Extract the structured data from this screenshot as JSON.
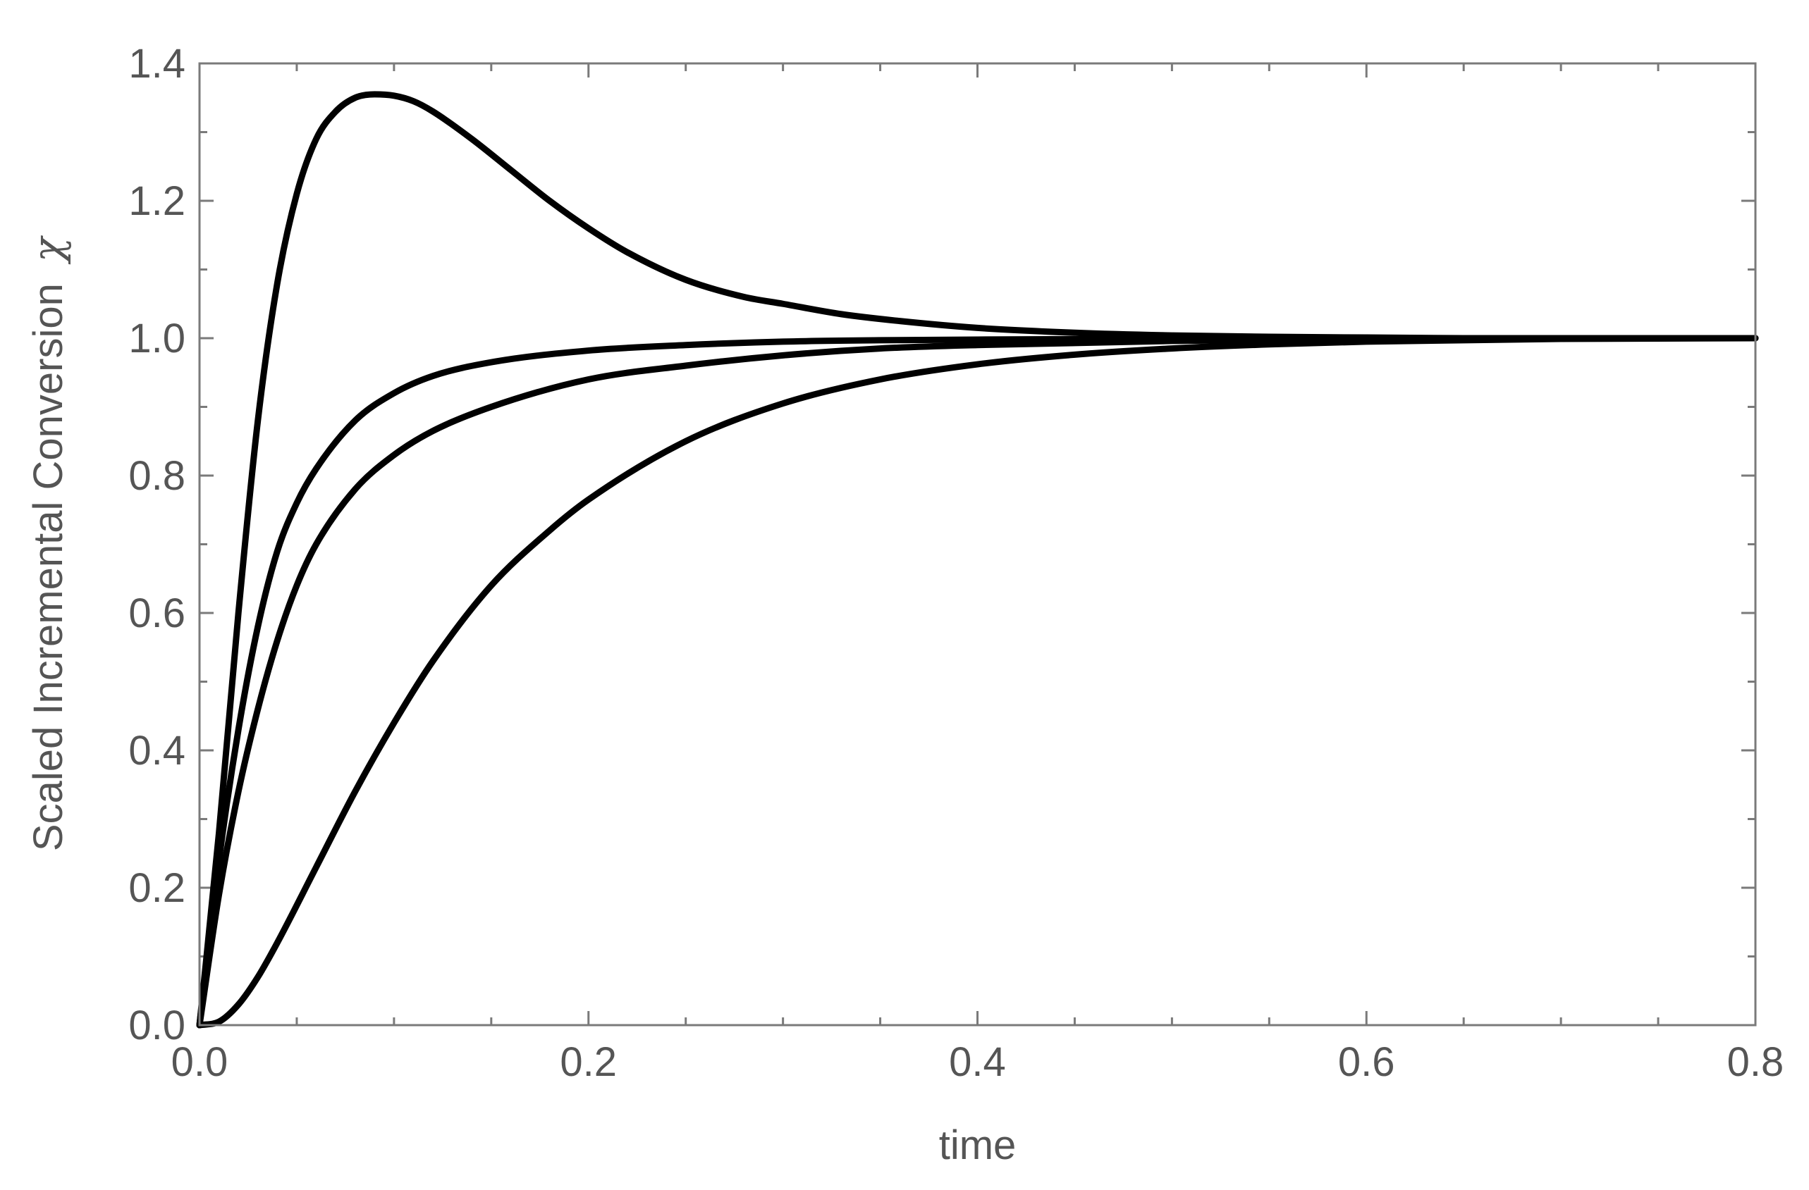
{
  "chart_data": {
    "type": "line",
    "title": "",
    "xlabel": "time",
    "ylabel": "Scaled Incremental Conversion",
    "ylabel_symbol": "χ",
    "xlim": [
      0,
      0.8
    ],
    "ylim": [
      0,
      1.4
    ],
    "x_ticks": [
      "0.0",
      "0.2",
      "0.4",
      "0.6",
      "0.8"
    ],
    "y_ticks": [
      "0.0",
      "0.2",
      "0.4",
      "0.6",
      "0.8",
      "1.0",
      "1.2",
      "1.4"
    ],
    "x_tick_values": [
      0,
      0.2,
      0.4,
      0.6,
      0.8
    ],
    "y_tick_values": [
      0,
      0.2,
      0.4,
      0.6,
      0.8,
      1.0,
      1.2,
      1.4
    ],
    "x_minor_step": 0.05,
    "y_minor_step": 0.1,
    "grid": false,
    "legend": "none",
    "line_color": "#000000",
    "series": [
      {
        "x": [
          0,
          0.01,
          0.02,
          0.03,
          0.04,
          0.05,
          0.06,
          0.07,
          0.08,
          0.09,
          0.1,
          0.11,
          0.12,
          0.14,
          0.16,
          0.18,
          0.2,
          0.22,
          0.25,
          0.28,
          0.3,
          0.33,
          0.36,
          0.4,
          0.45,
          0.5,
          0.55,
          0.6,
          0.65,
          0.7,
          0.75,
          0.8
        ],
        "y": [
          0,
          0.28,
          0.6,
          0.88,
          1.08,
          1.21,
          1.29,
          1.33,
          1.35,
          1.355,
          1.353,
          1.345,
          1.33,
          1.29,
          1.245,
          1.2,
          1.16,
          1.125,
          1.085,
          1.06,
          1.05,
          1.035,
          1.025,
          1.015,
          1.008,
          1.004,
          1.002,
          1.001,
          1.0,
          1.0,
          1.0,
          1.0
        ]
      },
      {
        "x": [
          0,
          0.01,
          0.02,
          0.03,
          0.04,
          0.05,
          0.06,
          0.08,
          0.1,
          0.12,
          0.15,
          0.2,
          0.25,
          0.3,
          0.35,
          0.4,
          0.5,
          0.6,
          0.7,
          0.8
        ],
        "y": [
          0,
          0.24,
          0.43,
          0.58,
          0.69,
          0.76,
          0.81,
          0.88,
          0.92,
          0.945,
          0.965,
          0.982,
          0.99,
          0.995,
          0.997,
          0.998,
          0.999,
          1.0,
          1.0,
          1.0
        ]
      },
      {
        "x": [
          0,
          0.01,
          0.02,
          0.03,
          0.04,
          0.05,
          0.06,
          0.08,
          0.1,
          0.12,
          0.15,
          0.2,
          0.25,
          0.3,
          0.35,
          0.4,
          0.5,
          0.6,
          0.7,
          0.8
        ],
        "y": [
          0,
          0.19,
          0.34,
          0.46,
          0.56,
          0.64,
          0.7,
          0.78,
          0.83,
          0.865,
          0.9,
          0.94,
          0.96,
          0.975,
          0.985,
          0.99,
          0.996,
          0.999,
          1.0,
          1.0
        ]
      },
      {
        "x": [
          0,
          0.01,
          0.02,
          0.03,
          0.04,
          0.06,
          0.08,
          0.1,
          0.12,
          0.15,
          0.18,
          0.2,
          0.25,
          0.3,
          0.35,
          0.4,
          0.45,
          0.5,
          0.55,
          0.6,
          0.7,
          0.8
        ],
        "y": [
          0,
          0.005,
          0.03,
          0.07,
          0.12,
          0.23,
          0.34,
          0.44,
          0.53,
          0.64,
          0.72,
          0.765,
          0.85,
          0.905,
          0.94,
          0.962,
          0.976,
          0.985,
          0.991,
          0.995,
          0.999,
          1.0
        ]
      }
    ]
  }
}
